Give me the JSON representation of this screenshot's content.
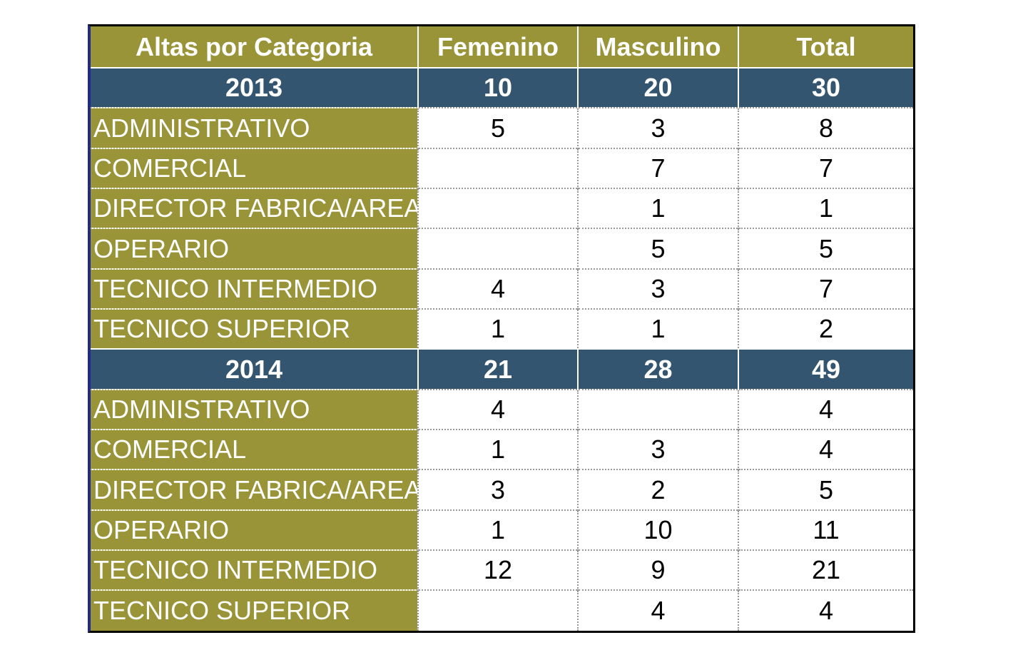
{
  "chart_data": {
    "type": "table",
    "columns": [
      "Altas por Categoria",
      "Femenino",
      "Masculino",
      "Total"
    ],
    "groups": [
      {
        "year": "2013",
        "femenino": "10",
        "masculino": "20",
        "total": "30",
        "rows": [
          {
            "categoria": "ADMINISTRATIVO",
            "femenino": "5",
            "masculino": "3",
            "total": "8"
          },
          {
            "categoria": "COMERCIAL",
            "femenino": "",
            "masculino": "7",
            "total": "7"
          },
          {
            "categoria": "DIRECTOR FABRICA/AREA",
            "femenino": "",
            "masculino": "1",
            "total": "1"
          },
          {
            "categoria": "OPERARIO",
            "femenino": "",
            "masculino": "5",
            "total": "5"
          },
          {
            "categoria": "TECNICO INTERMEDIO",
            "femenino": "4",
            "masculino": "3",
            "total": "7"
          },
          {
            "categoria": "TECNICO SUPERIOR",
            "femenino": "1",
            "masculino": "1",
            "total": "2"
          }
        ]
      },
      {
        "year": "2014",
        "femenino": "21",
        "masculino": "28",
        "total": "49",
        "rows": [
          {
            "categoria": "ADMINISTRATIVO",
            "femenino": "4",
            "masculino": "",
            "total": "4"
          },
          {
            "categoria": "COMERCIAL",
            "femenino": "1",
            "masculino": "3",
            "total": "4"
          },
          {
            "categoria": "DIRECTOR FABRICA/AREA",
            "femenino": "3",
            "masculino": "2",
            "total": "5"
          },
          {
            "categoria": "OPERARIO",
            "femenino": "1",
            "masculino": "10",
            "total": "11"
          },
          {
            "categoria": "TECNICO INTERMEDIO",
            "femenino": "12",
            "masculino": "9",
            "total": "21"
          },
          {
            "categoria": "TECNICO SUPERIOR",
            "femenino": "",
            "masculino": "4",
            "total": "4"
          }
        ]
      }
    ]
  },
  "colors": {
    "header_bg": "#9a9439",
    "year_bg": "#33556f",
    "category_bg": "#9a9439",
    "cell_bg": "#ffffff"
  }
}
